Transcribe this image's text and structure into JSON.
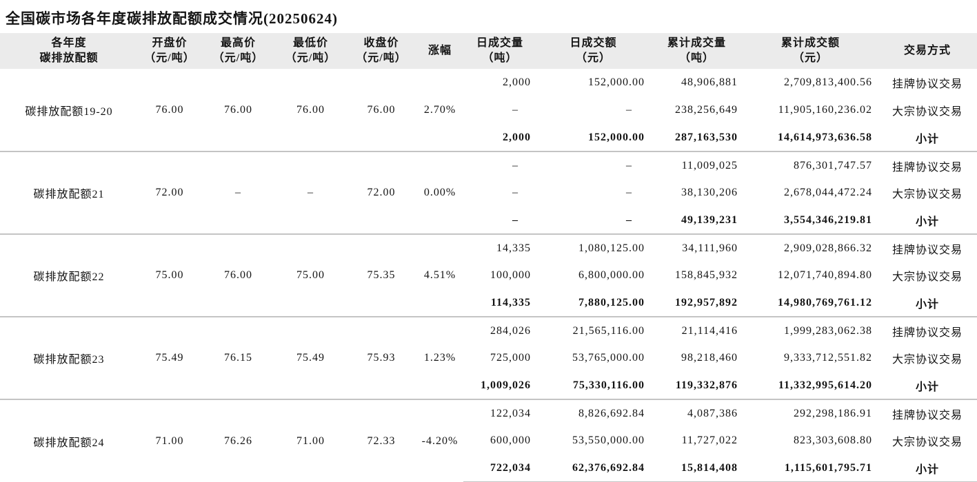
{
  "chart_data": {
    "type": "table",
    "title": "全国碳市场各年度碳排放配额成交情况(20250624)",
    "header_lines": [
      [
        "各年度",
        "碳排放配额"
      ],
      [
        "开盘价",
        "（元/吨）"
      ],
      [
        "最高价",
        "（元/吨）"
      ],
      [
        "最低价",
        "（元/吨）"
      ],
      [
        "收盘价",
        "（元/吨）"
      ],
      [
        "涨幅",
        ""
      ],
      [
        "日成交量",
        "（吨）"
      ],
      [
        "日成交额",
        "（元）"
      ],
      [
        "累计成交量",
        "（吨）"
      ],
      [
        "累计成交额",
        "（元）"
      ],
      [
        "交易方式",
        ""
      ]
    ],
    "groups": [
      {
        "name": "碳排放配额19-20",
        "open": "76.00",
        "high": "76.00",
        "low": "76.00",
        "close": "76.00",
        "change": "2.70%",
        "rows": [
          {
            "daily_volume": "2,000",
            "daily_amount": "152,000.00",
            "cum_volume": "48,906,881",
            "cum_amount": "2,709,813,400.56",
            "method": "挂牌协议交易",
            "subtotal": false
          },
          {
            "daily_volume": "–",
            "daily_amount": "–",
            "cum_volume": "238,256,649",
            "cum_amount": "11,905,160,236.02",
            "method": "大宗协议交易",
            "subtotal": false
          },
          {
            "daily_volume": "2,000",
            "daily_amount": "152,000.00",
            "cum_volume": "287,163,530",
            "cum_amount": "14,614,973,636.58",
            "method": "小计",
            "subtotal": true
          }
        ]
      },
      {
        "name": "碳排放配额21",
        "open": "72.00",
        "high": "–",
        "low": "–",
        "close": "72.00",
        "change": "0.00%",
        "rows": [
          {
            "daily_volume": "–",
            "daily_amount": "–",
            "cum_volume": "11,009,025",
            "cum_amount": "876,301,747.57",
            "method": "挂牌协议交易",
            "subtotal": false
          },
          {
            "daily_volume": "–",
            "daily_amount": "–",
            "cum_volume": "38,130,206",
            "cum_amount": "2,678,044,472.24",
            "method": "大宗协议交易",
            "subtotal": false
          },
          {
            "daily_volume": "–",
            "daily_amount": "–",
            "cum_volume": "49,139,231",
            "cum_amount": "3,554,346,219.81",
            "method": "小计",
            "subtotal": true
          }
        ]
      },
      {
        "name": "碳排放配额22",
        "open": "75.00",
        "high": "76.00",
        "low": "75.00",
        "close": "75.35",
        "change": "4.51%",
        "rows": [
          {
            "daily_volume": "14,335",
            "daily_amount": "1,080,125.00",
            "cum_volume": "34,111,960",
            "cum_amount": "2,909,028,866.32",
            "method": "挂牌协议交易",
            "subtotal": false
          },
          {
            "daily_volume": "100,000",
            "daily_amount": "6,800,000.00",
            "cum_volume": "158,845,932",
            "cum_amount": "12,071,740,894.80",
            "method": "大宗协议交易",
            "subtotal": false
          },
          {
            "daily_volume": "114,335",
            "daily_amount": "7,880,125.00",
            "cum_volume": "192,957,892",
            "cum_amount": "14,980,769,761.12",
            "method": "小计",
            "subtotal": true
          }
        ]
      },
      {
        "name": "碳排放配额23",
        "open": "75.49",
        "high": "76.15",
        "low": "75.49",
        "close": "75.93",
        "change": "1.23%",
        "rows": [
          {
            "daily_volume": "284,026",
            "daily_amount": "21,565,116.00",
            "cum_volume": "21,114,416",
            "cum_amount": "1,999,283,062.38",
            "method": "挂牌协议交易",
            "subtotal": false
          },
          {
            "daily_volume": "725,000",
            "daily_amount": "53,765,000.00",
            "cum_volume": "98,218,460",
            "cum_amount": "9,333,712,551.82",
            "method": "大宗协议交易",
            "subtotal": false
          },
          {
            "daily_volume": "1,009,026",
            "daily_amount": "75,330,116.00",
            "cum_volume": "119,332,876",
            "cum_amount": "11,332,995,614.20",
            "method": "小计",
            "subtotal": true
          }
        ]
      },
      {
        "name": "碳排放配额24",
        "open": "71.00",
        "high": "76.26",
        "low": "71.00",
        "close": "72.33",
        "change": "-4.20%",
        "rows": [
          {
            "daily_volume": "122,034",
            "daily_amount": "8,826,692.84",
            "cum_volume": "4,087,386",
            "cum_amount": "292,298,186.91",
            "method": "挂牌协议交易",
            "subtotal": false
          },
          {
            "daily_volume": "600,000",
            "daily_amount": "53,550,000.00",
            "cum_volume": "11,727,022",
            "cum_amount": "823,303,608.80",
            "method": "大宗协议交易",
            "subtotal": false
          },
          {
            "daily_volume": "722,034",
            "daily_amount": "62,376,692.84",
            "cum_volume": "15,814,408",
            "cum_amount": "1,115,601,795.71",
            "method": "小计",
            "subtotal": true
          }
        ]
      }
    ]
  }
}
